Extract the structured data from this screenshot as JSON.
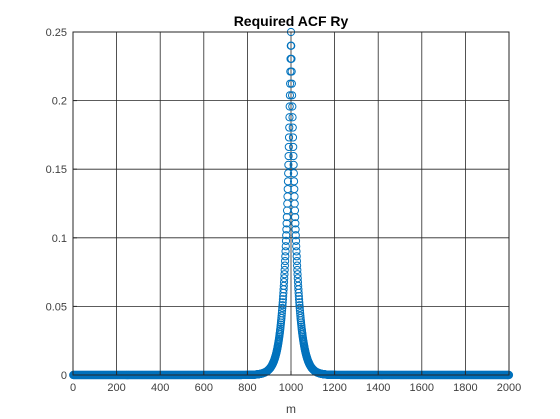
{
  "chart_data": {
    "type": "scatter",
    "title": "Required ACF Ry",
    "xlabel": "m",
    "ylabel": "",
    "xlim": [
      0,
      2000
    ],
    "ylim": [
      0,
      0.25
    ],
    "x_ticks": [
      0,
      200,
      400,
      600,
      800,
      1000,
      1200,
      1400,
      1600,
      1800,
      2000
    ],
    "x_tick_labels": [
      "0",
      "200",
      "400",
      "600",
      "800",
      "1000",
      "1200",
      "1400",
      "1600",
      "1800",
      "2000"
    ],
    "y_ticks": [
      0,
      0.05,
      0.1,
      0.15,
      0.2,
      0.25
    ],
    "y_tick_labels": [
      "0",
      "0.05",
      "0.1",
      "0.15",
      "0.2",
      "0.25"
    ],
    "grid": true,
    "marker": "circle-open",
    "color": "#0072BD",
    "series": [
      {
        "x_start": 1,
        "x_end": 2000,
        "x_step": 1,
        "peak_x": 1000,
        "peak_y": 0.25,
        "decay_per_sample": 0.96
      }
    ]
  }
}
